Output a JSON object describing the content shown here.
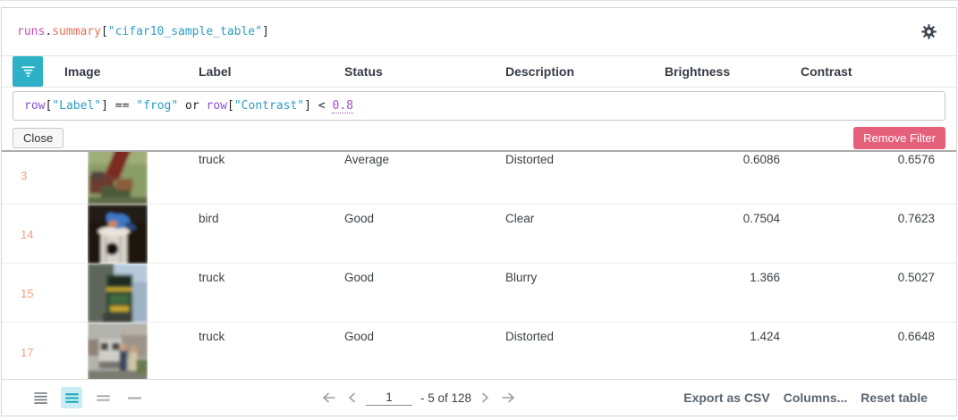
{
  "panel": {
    "title_tokens": [
      {
        "t": "runs",
        "c": "tk-var"
      },
      {
        "t": ".",
        "c": "tk-plain"
      },
      {
        "t": "summary",
        "c": "tk-prop"
      },
      {
        "t": "[",
        "c": "tk-plain"
      },
      {
        "t": "\"cifar10_sample_table\"",
        "c": "tk-str"
      },
      {
        "t": "]",
        "c": "tk-plain"
      }
    ],
    "gear_icon": "settings-gear"
  },
  "table": {
    "columns": [
      "Image",
      "Label",
      "Status",
      "Description",
      "Brightness",
      "Contrast"
    ],
    "filter": {
      "expression_tokens": [
        {
          "t": "row",
          "c": "tk-kw"
        },
        {
          "t": "[",
          "c": "tk-plain"
        },
        {
          "t": "\"Label\"",
          "c": "tk-str"
        },
        {
          "t": "] == ",
          "c": "tk-plain"
        },
        {
          "t": "\"frog\"",
          "c": "tk-str"
        },
        {
          "t": " or ",
          "c": "tk-plain"
        },
        {
          "t": "row",
          "c": "tk-kw"
        },
        {
          "t": "[",
          "c": "tk-plain"
        },
        {
          "t": "\"Contrast\"",
          "c": "tk-str"
        },
        {
          "t": "] < ",
          "c": "tk-plain"
        },
        {
          "t": "0.8",
          "c": "tk-num"
        }
      ],
      "close_label": "Close",
      "remove_label": "Remove Filter"
    },
    "rows": [
      {
        "num": "3",
        "label": "truck",
        "status": "Average",
        "description": "Distorted",
        "brightness": "0.6086",
        "contrast": "0.6576",
        "image_desc": "red crane truck on grass"
      },
      {
        "num": "14",
        "label": "bird",
        "status": "Good",
        "description": "Clear",
        "brightness": "0.7504",
        "contrast": "0.7623",
        "image_desc": "blue bird perched on birdhouse"
      },
      {
        "num": "15",
        "label": "truck",
        "status": "Good",
        "description": "Blurry",
        "brightness": "1.366",
        "contrast": "0.5027",
        "image_desc": "green and yellow truck front"
      },
      {
        "num": "17",
        "label": "truck",
        "status": "Good",
        "description": "Distorted",
        "brightness": "1.424",
        "contrast": "0.6648",
        "image_desc": "truck with people near houses"
      }
    ]
  },
  "footer": {
    "pagination": {
      "page_value": "1",
      "range_label": "- 5 of 128"
    },
    "actions": [
      "Export as CSV",
      "Columns...",
      "Reset table"
    ]
  },
  "colors": {
    "accent_teal": "#2cb1c7",
    "remove_pink": "#e5607a",
    "row_number_orange": "#f0a27d",
    "selected_density_bg": "#c9edf2",
    "syntax_string": "#2d9dc2",
    "syntax_keyword": "#8a50d4"
  }
}
